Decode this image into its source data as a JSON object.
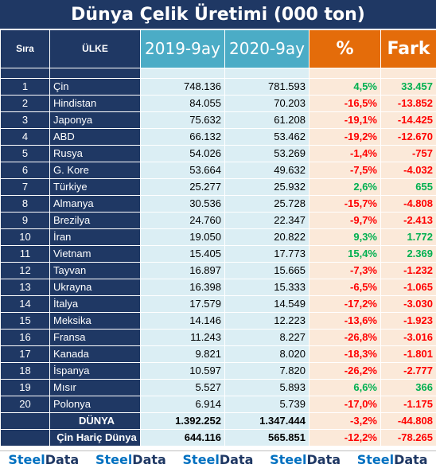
{
  "title": "Dünya Çelik Üretimi (000 ton)",
  "headers": {
    "rank": "Sıra",
    "country": "ÜLKE",
    "y2019": "2019-9ay",
    "y2020": "2020-9ay",
    "pct": "%",
    "diff": "Fark"
  },
  "rows": [
    {
      "rank": "1",
      "country": "Çin",
      "y2019": "748.136",
      "y2020": "781.593",
      "pct": "4,5%",
      "diff": "33.457",
      "positive": true
    },
    {
      "rank": "2",
      "country": "Hindistan",
      "y2019": "84.055",
      "y2020": "70.203",
      "pct": "-16,5%",
      "diff": "-13.852",
      "positive": false
    },
    {
      "rank": "3",
      "country": "Japonya",
      "y2019": "75.632",
      "y2020": "61.208",
      "pct": "-19,1%",
      "diff": "-14.425",
      "positive": false
    },
    {
      "rank": "4",
      "country": "ABD",
      "y2019": "66.132",
      "y2020": "53.462",
      "pct": "-19,2%",
      "diff": "-12.670",
      "positive": false
    },
    {
      "rank": "5",
      "country": "Rusya",
      "y2019": "54.026",
      "y2020": "53.269",
      "pct": "-1,4%",
      "diff": "-757",
      "positive": false
    },
    {
      "rank": "6",
      "country": "G. Kore",
      "y2019": "53.664",
      "y2020": "49.632",
      "pct": "-7,5%",
      "diff": "-4.032",
      "positive": false
    },
    {
      "rank": "7",
      "country": "Türkiye",
      "y2019": "25.277",
      "y2020": "25.932",
      "pct": "2,6%",
      "diff": "655",
      "positive": true
    },
    {
      "rank": "8",
      "country": "Almanya",
      "y2019": "30.536",
      "y2020": "25.728",
      "pct": "-15,7%",
      "diff": "-4.808",
      "positive": false
    },
    {
      "rank": "9",
      "country": "Brezilya",
      "y2019": "24.760",
      "y2020": "22.347",
      "pct": "-9,7%",
      "diff": "-2.413",
      "positive": false
    },
    {
      "rank": "10",
      "country": "İran",
      "y2019": "19.050",
      "y2020": "20.822",
      "pct": "9,3%",
      "diff": "1.772",
      "positive": true
    },
    {
      "rank": "11",
      "country": "Vietnam",
      "y2019": "15.405",
      "y2020": "17.773",
      "pct": "15,4%",
      "diff": "2.369",
      "positive": true
    },
    {
      "rank": "12",
      "country": "Tayvan",
      "y2019": "16.897",
      "y2020": "15.665",
      "pct": "-7,3%",
      "diff": "-1.232",
      "positive": false
    },
    {
      "rank": "13",
      "country": "Ukrayna",
      "y2019": "16.398",
      "y2020": "15.333",
      "pct": "-6,5%",
      "diff": "-1.065",
      "positive": false
    },
    {
      "rank": "14",
      "country": "İtalya",
      "y2019": "17.579",
      "y2020": "14.549",
      "pct": "-17,2%",
      "diff": "-3.030",
      "positive": false
    },
    {
      "rank": "15",
      "country": "Meksika",
      "y2019": "14.146",
      "y2020": "12.223",
      "pct": "-13,6%",
      "diff": "-1.923",
      "positive": false
    },
    {
      "rank": "16",
      "country": "Fransa",
      "y2019": "11.243",
      "y2020": "8.227",
      "pct": "-26,8%",
      "diff": "-3.016",
      "positive": false
    },
    {
      "rank": "17",
      "country": "Kanada",
      "y2019": "9.821",
      "y2020": "8.020",
      "pct": "-18,3%",
      "diff": "-1.801",
      "positive": false
    },
    {
      "rank": "18",
      "country": "İspanya",
      "y2019": "10.597",
      "y2020": "7.820",
      "pct": "-26,2%",
      "diff": "-2.777",
      "positive": false
    },
    {
      "rank": "19",
      "country": "Mısır",
      "y2019": "5.527",
      "y2020": "5.893",
      "pct": "6,6%",
      "diff": "366",
      "positive": true
    },
    {
      "rank": "20",
      "country": "Polonya",
      "y2019": "6.914",
      "y2020": "5.739",
      "pct": "-17,0%",
      "diff": "-1.175",
      "positive": false
    }
  ],
  "totals": [
    {
      "label": "DÜNYA",
      "y2019": "1.392.252",
      "y2020": "1.347.444",
      "pct": "-3,2%",
      "diff": "-44.808"
    },
    {
      "label": "Çin Hariç Dünya",
      "y2019": "644.116",
      "y2020": "565.851",
      "pct": "-12,2%",
      "diff": "-78.265"
    }
  ],
  "footer": {
    "brand_part1": "Steel",
    "brand_part2": "Data",
    "count": 5
  },
  "colors": {
    "dark_blue": "#1f3864",
    "light_blue": "#4bacc6",
    "orange": "#e46c0a",
    "positive": "#00b050",
    "negative": "#ff0000"
  }
}
